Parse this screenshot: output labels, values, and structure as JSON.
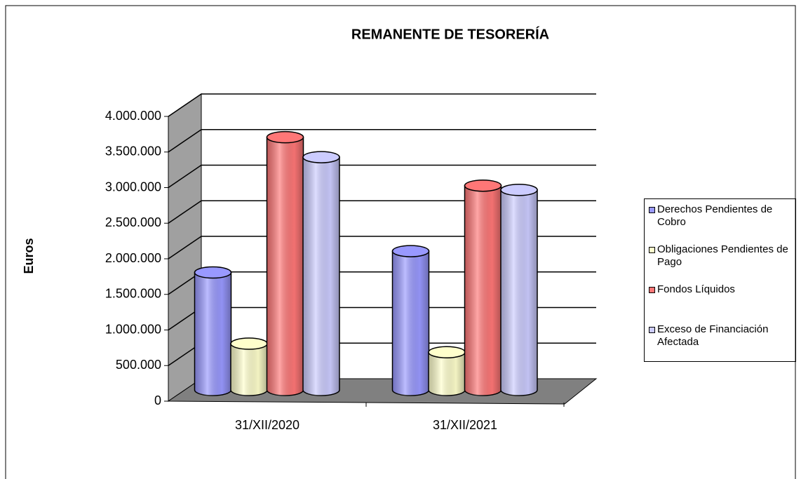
{
  "chart_data": {
    "type": "bar3d-cylinder",
    "title": "REMANENTE DE TESORERÍA",
    "y_label": "Euros",
    "categories": [
      "31/XII/2020",
      "31/XII/2021"
    ],
    "series": [
      {
        "name": "Derechos Pendientes de Cobro",
        "color": "#9999ff",
        "values": [
          1650000,
          1950000
        ]
      },
      {
        "name": "Obligaciones Pendientes de Pago",
        "color": "#ffffcc",
        "values": [
          650000,
          530000
        ]
      },
      {
        "name": "Fondos Líquidos",
        "color": "#ff7777",
        "values": [
          3550000,
          2870000
        ]
      },
      {
        "name": "Exceso de Financiación Afectada",
        "color": "#ccccff",
        "values": [
          3270000,
          2810000
        ]
      }
    ],
    "ylim": [
      0,
      4000000
    ],
    "yticks": [
      0,
      {
        "value": 500000,
        "label": "500.000"
      },
      {
        "value": 1000000,
        "label": "1.000.000"
      },
      {
        "value": 1500000,
        "label": "1.500.000"
      },
      {
        "value": 2000000,
        "label": "2.000.000"
      },
      {
        "value": 2500000,
        "label": "2.500.000"
      },
      {
        "value": 3000000,
        "label": "3.000.000"
      },
      {
        "value": 3500000,
        "label": "3.500.000"
      },
      {
        "value": 4000000,
        "label": "4.000.000"
      }
    ],
    "grid": true,
    "legend": "right"
  }
}
